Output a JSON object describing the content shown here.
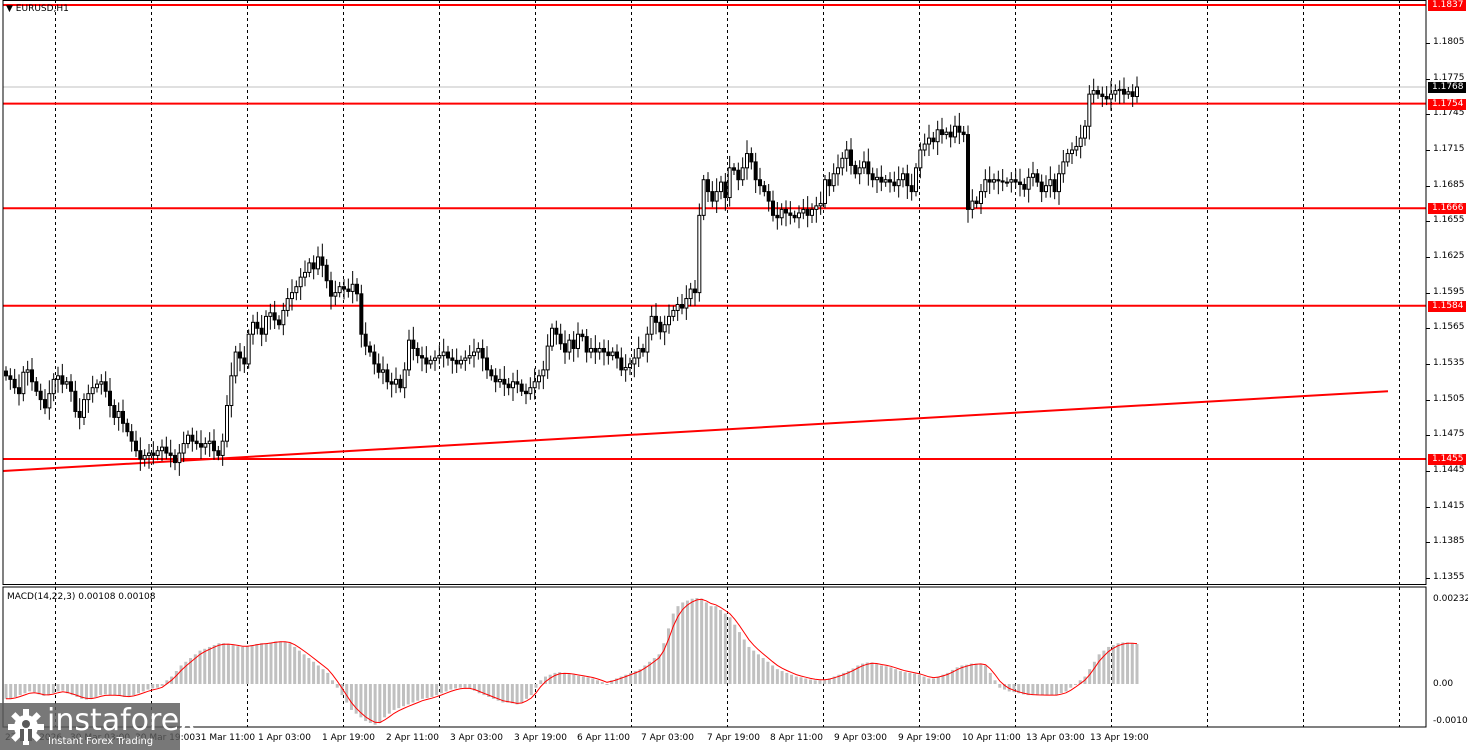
{
  "header": {
    "symbol_title": "EURUSD,H1",
    "macd_title": "MACD(14,22,3) 0.00108 0.00108"
  },
  "price_axis": {
    "ticks": [
      "1.1805",
      "1.1775",
      "1.1745",
      "1.1715",
      "1.1685",
      "1.1655",
      "1.1625",
      "1.1595",
      "1.1565",
      "1.1535",
      "1.1505",
      "1.1475",
      "1.1445",
      "1.1415",
      "1.1385",
      "1.1355"
    ],
    "current_price": "1.1768",
    "level_tags": [
      "1.1837",
      "1.1754",
      "1.1666",
      "1.1584",
      "1.1455"
    ]
  },
  "macd_axis": {
    "ticks": [
      "0.00232",
      "0.00",
      "-0.00108"
    ]
  },
  "time_axis": {
    "labels": [
      "27 Mar 2026",
      "30 Mar 03:00",
      "30 Mar 19:00",
      "31 Mar 11:00",
      "1 Apr 03:00",
      "1 Apr 19:00",
      "2 Apr 11:00",
      "3 Apr 03:00",
      "3 Apr 19:00",
      "6 Apr 11:00",
      "7 Apr 03:00",
      "7 Apr 19:00",
      "8 Apr 11:00",
      "9 Apr 03:00",
      "9 Apr 19:00",
      "10 Apr 11:00",
      "13 Apr 03:00",
      "13 Apr 19:00"
    ]
  },
  "watermark": {
    "brand": "instaforex",
    "tagline": "Instant Forex Trading"
  },
  "colors": {
    "level_line": "#ff0000",
    "trend_line": "#ff0000",
    "macd_hist": "#c0c0c0",
    "macd_signal": "#ff0000",
    "current_price_bg": "#000000",
    "grid": "#000000"
  },
  "chart_data": [
    {
      "type": "candlestick",
      "title": "EURUSD,H1",
      "ylim": [
        1.134,
        1.185
      ],
      "horizontal_levels": [
        1.1837,
        1.1754,
        1.1666,
        1.1584,
        1.1455
      ],
      "trend_line": {
        "start": {
          "x_label": "27 Mar 2026",
          "price": 1.145
        },
        "end": {
          "x_label": "after 13 Apr 19:00",
          "price": 1.1512
        }
      },
      "current_price": 1.1768,
      "closes": [
        1.1525,
        1.1522,
        1.1515,
        1.151,
        1.1528,
        1.153,
        1.152,
        1.1512,
        1.1505,
        1.1498,
        1.151,
        1.1522,
        1.1525,
        1.1518,
        1.152,
        1.1512,
        1.1495,
        1.149,
        1.1505,
        1.151,
        1.1515,
        1.1518,
        1.152,
        1.1512,
        1.15,
        1.149,
        1.1495,
        1.1485,
        1.1478,
        1.147,
        1.1462,
        1.1455,
        1.1458,
        1.146,
        1.1458,
        1.1462,
        1.1465,
        1.146,
        1.1458,
        1.1452,
        1.146,
        1.1468,
        1.1475,
        1.147,
        1.1468,
        1.1465,
        1.1468,
        1.147,
        1.1462,
        1.1458,
        1.147,
        1.15,
        1.1525,
        1.1545,
        1.154,
        1.1535,
        1.156,
        1.157,
        1.1565,
        1.156,
        1.1575,
        1.1578,
        1.1572,
        1.1568,
        1.158,
        1.159,
        1.1595,
        1.16,
        1.1608,
        1.1612,
        1.162,
        1.1615,
        1.1625,
        1.1618,
        1.1605,
        1.1592,
        1.1595,
        1.16,
        1.1598,
        1.1596,
        1.1602,
        1.1594,
        1.156,
        1.155,
        1.1545,
        1.1535,
        1.1528,
        1.153,
        1.152,
        1.1518,
        1.1522,
        1.1515,
        1.153,
        1.1555,
        1.1548,
        1.1542,
        1.154,
        1.1535,
        1.1538,
        1.154,
        1.1542,
        1.1545,
        1.154,
        1.1538,
        1.1535,
        1.1538,
        1.154,
        1.1542,
        1.1545,
        1.1548,
        1.154,
        1.153,
        1.1525,
        1.152,
        1.1522,
        1.1518,
        1.1515,
        1.152,
        1.1518,
        1.1512,
        1.151,
        1.1515,
        1.152,
        1.1525,
        1.153,
        1.155,
        1.1565,
        1.156,
        1.1552,
        1.1545,
        1.1555,
        1.1548,
        1.156,
        1.1558,
        1.1545,
        1.1548,
        1.1545,
        1.1548,
        1.1545,
        1.1542,
        1.1545,
        1.154,
        1.153,
        1.1532,
        1.1535,
        1.154,
        1.1548,
        1.1545,
        1.156,
        1.1575,
        1.157,
        1.1562,
        1.1568,
        1.1575,
        1.158,
        1.1585,
        1.1582,
        1.159,
        1.1598,
        1.1595,
        1.166,
        1.169,
        1.168,
        1.1672,
        1.168,
        1.1688,
        1.1675,
        1.17,
        1.1698,
        1.169,
        1.17,
        1.1712,
        1.1705,
        1.169,
        1.1685,
        1.168,
        1.1672,
        1.166,
        1.1658,
        1.1665,
        1.1662,
        1.166,
        1.1658,
        1.1662,
        1.1665,
        1.166,
        1.1665,
        1.1668,
        1.167,
        1.169,
        1.1685,
        1.1695,
        1.17,
        1.1708,
        1.1715,
        1.1702,
        1.1695,
        1.17,
        1.1705,
        1.1695,
        1.169,
        1.1692,
        1.1688,
        1.169,
        1.1688,
        1.1685,
        1.169,
        1.1695,
        1.1685,
        1.168,
        1.17,
        1.1715,
        1.172,
        1.1725,
        1.1722,
        1.1732,
        1.1728,
        1.173,
        1.1726,
        1.1735,
        1.173,
        1.1728,
        1.1665,
        1.1672,
        1.167,
        1.168,
        1.169,
        1.1688,
        1.169,
        1.1689,
        1.1688,
        1.1688,
        1.169,
        1.1688,
        1.1686,
        1.1682,
        1.1692,
        1.1695,
        1.1688,
        1.168,
        1.1685,
        1.169,
        1.168,
        1.1695,
        1.1705,
        1.1712,
        1.1715,
        1.1718,
        1.1725,
        1.1735,
        1.1762,
        1.1765,
        1.1762,
        1.176,
        1.1758,
        1.1762,
        1.1765,
        1.1766,
        1.1762,
        1.1764,
        1.176,
        1.1768
      ]
    },
    {
      "type": "bar+line",
      "title": "MACD(14,22,3) 0.00108 0.00108",
      "ylim": [
        -0.00108,
        0.00232
      ],
      "ticks": [
        0.00232,
        0.0,
        -0.00108
      ],
      "last_values": {
        "macd": 0.00108,
        "signal": 0.00108
      },
      "histogram_shape": "negative ~-0.0003 (27-31 Mar), rises to ~+0.0011 (1 Apr), drops to ~-0.0011 (2 Apr), near zero / slight negative 3 Apr, ~+0.0003 6-7 Apr, peak ~+0.0023 (8 Apr), ~+0.0003 to +0.0006 9-10 Apr, ~-0.0002 13 Apr, ~+0.0011 at end",
      "hist_series": [
        -0.0004,
        -0.0004,
        -0.00035,
        -0.0003,
        -0.00025,
        -0.0002,
        -0.00022,
        -0.00028,
        -0.00032,
        -0.0003,
        -0.00025,
        -0.0002,
        -0.00018,
        -0.00025,
        -0.0003,
        -0.00035,
        -0.0004,
        -0.00042,
        -0.0004,
        -0.00035,
        -0.0003,
        -0.00028,
        -0.0003,
        -0.0003,
        -0.00032,
        -0.00035,
        -0.00035,
        -0.0003,
        -0.00025,
        -0.0002,
        -0.00015,
        -0.00012,
        -0.0001,
        -5e-05,
        0.0001,
        0.0002,
        0.00035,
        0.0005,
        0.0006,
        0.0007,
        0.0008,
        0.0009,
        0.00095,
        0.001,
        0.00105,
        0.0011,
        0.0011,
        0.00108,
        0.00105,
        0.00102,
        0.001,
        0.00102,
        0.00105,
        0.00108,
        0.0011,
        0.0011,
        0.00112,
        0.00115,
        0.00115,
        0.00114,
        0.0011,
        0.001,
        0.0009,
        0.0008,
        0.0007,
        0.0006,
        0.0005,
        0.0004,
        0.0003,
        0.0001,
        -0.0001,
        -0.0003,
        -0.0005,
        -0.0007,
        -0.0008,
        -0.0009,
        -0.001,
        -0.00105,
        -0.0011,
        -0.00105,
        -0.0009,
        -0.0008,
        -0.0007,
        -0.00065,
        -0.0006,
        -0.00055,
        -0.0005,
        -0.00045,
        -0.0004,
        -0.00038,
        -0.00035,
        -0.0003,
        -0.00025,
        -0.0002,
        -0.00015,
        -0.00012,
        -0.0001,
        -0.0001,
        -0.00012,
        -0.00018,
        -0.00025,
        -0.0003,
        -0.00035,
        -0.0004,
        -0.00045,
        -0.0005,
        -0.0005,
        -0.00052,
        -0.00055,
        -0.0005,
        -0.0004,
        -0.0003,
        -0.0001,
        0.0001,
        0.0002,
        0.00025,
        0.0003,
        0.00032,
        0.0003,
        0.00028,
        0.00025,
        0.00022,
        0.0002,
        0.00018,
        0.00015,
        0.0001,
        5e-05,
        0.0,
        0.0001,
        0.00015,
        0.0002,
        0.00025,
        0.0003,
        0.00035,
        0.0004,
        0.0005,
        0.0006,
        0.0007,
        0.0008,
        0.0011,
        0.0015,
        0.0019,
        0.0021,
        0.0022,
        0.00225,
        0.0023,
        0.00232,
        0.0023,
        0.0022,
        0.0021,
        0.0021,
        0.002,
        0.0019,
        0.0018,
        0.0016,
        0.0014,
        0.0012,
        0.001,
        0.0009,
        0.0008,
        0.0007,
        0.0006,
        0.0005,
        0.0004,
        0.00035,
        0.0003,
        0.00025,
        0.0002,
        0.00018,
        0.00015,
        0.00012,
        0.0001,
        0.0001,
        0.00012,
        0.00015,
        0.0002,
        0.00025,
        0.0003,
        0.00035,
        0.00042,
        0.0005,
        0.00055,
        0.00058,
        0.00058,
        0.00055,
        0.0005,
        0.00048,
        0.00045,
        0.0004,
        0.00035,
        0.00032,
        0.0003,
        0.00028,
        0.00025,
        0.0002,
        0.00015,
        0.00015,
        0.0002,
        0.00025,
        0.0003,
        0.00038,
        0.00045,
        0.0005,
        0.00052,
        0.00055,
        0.00055,
        0.00055,
        0.0005,
        0.0003,
        0.0001,
        -0.0001,
        -0.00015,
        -0.0002,
        -0.00022,
        -0.00025,
        -0.00028,
        -0.0003,
        -0.0003,
        -0.0003,
        -0.0003,
        -0.0003,
        -0.0003,
        -0.0003,
        -0.00025,
        -0.0002,
        -0.0001,
        0.0,
        0.0001,
        0.0002,
        0.0004,
        0.0006,
        0.0008,
        0.0009,
        0.001,
        0.00105,
        0.0011,
        0.00112,
        0.00112,
        0.0011,
        0.00108
      ]
    }
  ]
}
